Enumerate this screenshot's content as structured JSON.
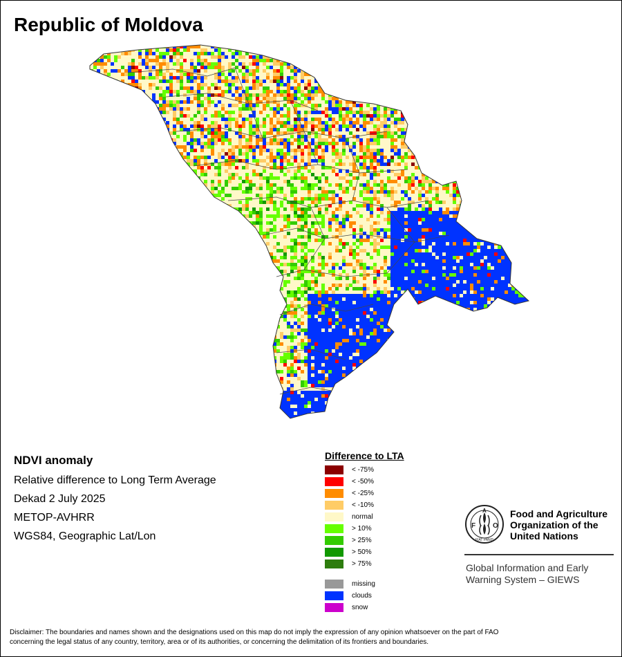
{
  "title": "Republic of Moldova",
  "info": {
    "product": "NDVI anomaly",
    "description": "Relative difference to Long Term Average",
    "period": "Dekad 2 July 2025",
    "sensor": "METOP-AVHRR",
    "projection": "WGS84, Geographic Lat/Lon"
  },
  "legend": {
    "title": "Difference to LTA",
    "classes": [
      {
        "label": "< -75%",
        "color": "#8b0000"
      },
      {
        "label": "< -50%",
        "color": "#ff0000"
      },
      {
        "label": "< -25%",
        "color": "#ff8c00"
      },
      {
        "label": "< -10%",
        "color": "#ffcc66"
      },
      {
        "label": "normal",
        "color": "#fff8c8"
      },
      {
        "label": "> 10%",
        "color": "#66ff00"
      },
      {
        "label": "> 25%",
        "color": "#33cc00"
      },
      {
        "label": "> 50%",
        "color": "#119900"
      },
      {
        "label": "> 75%",
        "color": "#2e7d0e"
      }
    ],
    "extra": [
      {
        "label": "missing",
        "color": "#999999"
      },
      {
        "label": "clouds",
        "color": "#0033ff"
      },
      {
        "label": "snow",
        "color": "#cc00cc"
      }
    ]
  },
  "fao": {
    "logo_text": "FAO",
    "logo_motto": "FIAT PANIS",
    "name_line1": "Food and Agriculture",
    "name_line2": "Organization of the",
    "name_line3": "United Nations",
    "giews_line1": "Global Information and Early",
    "giews_line2": "Warning System – GIEWS"
  },
  "disclaimer_line1": "Disclaimer: The boundaries and names shown and the designations used on this map do not imply the expression of any opinion whatsoever on the part of FAO",
  "disclaimer_line2": "concerning the legal status of any country, territory, area or of its authorities, or concerning the delimitation of its frontiers and boundaries."
}
